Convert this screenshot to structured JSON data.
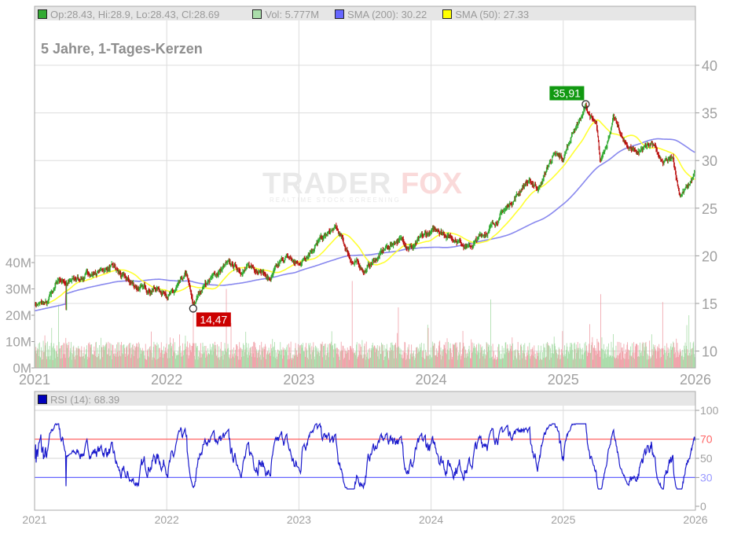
{
  "header": {
    "subtitle": "5 Jahre, 1-Tages-Kerzen",
    "legend": [
      {
        "label": "Op:28.43, Hi:28.9, Lo:28.43, Cl:28.69",
        "color": "#33aa33"
      },
      {
        "label": "Vol: 5.777M",
        "color": "#aaddaa"
      },
      {
        "label": "SMA (200): 30.22",
        "color": "#6666ff"
      },
      {
        "label": "SMA (50): 27.33",
        "color": "#ffff00"
      }
    ]
  },
  "rsi_panel": {
    "legend": {
      "label": "RSI (14): 68.39",
      "color": "#0000bb"
    }
  },
  "annotations": {
    "high": {
      "label": "35,91",
      "color": "#119911"
    },
    "low": {
      "label": "14,47",
      "color": "#cc0000"
    }
  },
  "watermark": {
    "brand_a": "TRADER",
    "brand_b": "FOX",
    "tagline": "REALTIME STOCK SCREENING"
  },
  "colors": {
    "up": "#33aa33",
    "down": "#bb1111",
    "vol_up": "#a8dca8",
    "vol_down": "#f0a0a8",
    "sma200": "#8888ee",
    "sma50": "#ffff33",
    "rsi_line": "#1a1acc",
    "rsi_70": "#ff6666",
    "rsi_30": "#6666ff",
    "grid": "#dddddd",
    "axis_text": "#a0a0a0",
    "header_bg": "#e6e6e6"
  },
  "chart_data": [
    {
      "type": "candlestick",
      "title": "5 Jahre, 1-Tages-Kerzen",
      "x_ticks": [
        "2021",
        "2022",
        "2023",
        "2024",
        "2025",
        "2026"
      ],
      "y_ticks_right": [
        10,
        15,
        20,
        25,
        30,
        35,
        40
      ],
      "ylim": [
        7.5,
        44.5
      ],
      "last": {
        "open": 28.43,
        "high": 28.9,
        "low": 28.43,
        "close": 28.69
      },
      "high_marker": {
        "value": 35.91,
        "label": "35,91",
        "approx_date": "2025-03"
      },
      "low_marker": {
        "value": 14.47,
        "label": "14,47",
        "approx_date": "2022-03"
      },
      "price_keypoints": [
        [
          2021.0,
          15.0
        ],
        [
          2021.1,
          14.9
        ],
        [
          2021.18,
          17.5
        ],
        [
          2021.27,
          17.2
        ],
        [
          2021.4,
          18.0
        ],
        [
          2021.58,
          18.8
        ],
        [
          2021.68,
          17.5
        ],
        [
          2021.8,
          16.5
        ],
        [
          2021.92,
          16.6
        ],
        [
          2022.05,
          16.0
        ],
        [
          2022.15,
          17.8
        ],
        [
          2022.2,
          14.5
        ],
        [
          2022.28,
          17.0
        ],
        [
          2022.45,
          19.0
        ],
        [
          2022.55,
          18.6
        ],
        [
          2022.7,
          18.8
        ],
        [
          2022.78,
          17.5
        ],
        [
          2022.9,
          19.8
        ],
        [
          2023.0,
          19.0
        ],
        [
          2023.1,
          21.0
        ],
        [
          2023.28,
          22.8
        ],
        [
          2023.4,
          19.5
        ],
        [
          2023.5,
          18.5
        ],
        [
          2023.62,
          20.2
        ],
        [
          2023.75,
          21.8
        ],
        [
          2023.86,
          21.0
        ],
        [
          2023.96,
          22.0
        ],
        [
          2024.05,
          22.8
        ],
        [
          2024.2,
          21.8
        ],
        [
          2024.3,
          21.0
        ],
        [
          2024.45,
          23.0
        ],
        [
          2024.6,
          25.5
        ],
        [
          2024.72,
          27.8
        ],
        [
          2024.82,
          27.2
        ],
        [
          2024.92,
          30.5
        ],
        [
          2025.0,
          30.0
        ],
        [
          2025.07,
          33.0
        ],
        [
          2025.17,
          35.5
        ],
        [
          2025.25,
          33.5
        ],
        [
          2025.28,
          29.5
        ],
        [
          2025.38,
          34.5
        ],
        [
          2025.47,
          31.5
        ],
        [
          2025.57,
          31.0
        ],
        [
          2025.67,
          32.0
        ],
        [
          2025.75,
          29.5
        ],
        [
          2025.83,
          30.0
        ],
        [
          2025.88,
          26.5
        ],
        [
          2025.95,
          27.3
        ],
        [
          2026.0,
          28.7
        ]
      ],
      "sma200_final": 30.22,
      "sma50_final": 27.33
    },
    {
      "type": "bar",
      "title": "Volume",
      "y_ticks_left": [
        "0M",
        "10M",
        "20M",
        "30M",
        "40M"
      ],
      "ylim": [
        0,
        45
      ],
      "last_volume": "5.777M",
      "typical_range_m": [
        3,
        12
      ],
      "spikes_m": [
        [
          2021.18,
          24
        ],
        [
          2022.2,
          22
        ],
        [
          2022.45,
          30
        ],
        [
          2023.4,
          33
        ],
        [
          2023.75,
          23
        ],
        [
          2024.45,
          26
        ],
        [
          2025.28,
          28
        ],
        [
          2025.75,
          25
        ],
        [
          2025.95,
          20
        ]
      ]
    },
    {
      "type": "line",
      "title": "RSI (14): 68.39",
      "y_ticks_right": [
        0,
        30,
        50,
        70,
        100
      ],
      "ylim": [
        0,
        100
      ],
      "overbought": 70,
      "oversold": 30,
      "last": 68.39
    }
  ]
}
